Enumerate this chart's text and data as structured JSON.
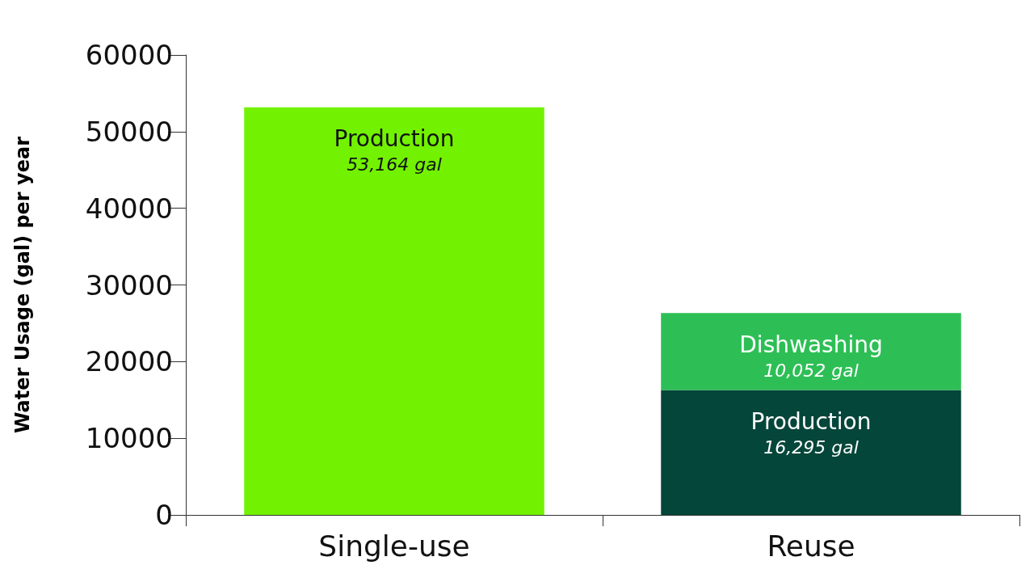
{
  "chart_data": {
    "type": "bar",
    "stacked": true,
    "ylabel": "Water Usage (gal) per year",
    "categories": [
      "Single-use",
      "Reuse"
    ],
    "series": [
      {
        "name": "Production",
        "colors": [
          "#72f200",
          "#05463a"
        ],
        "values": [
          53164,
          16295
        ],
        "value_labels": [
          "53,164 gal",
          "16,295 gal"
        ]
      },
      {
        "name": "Dishwashing",
        "color": "#2dbf55",
        "values": [
          null,
          10052
        ],
        "value_labels": [
          null,
          "10,052 gal"
        ]
      }
    ],
    "ylim": [
      0,
      60000
    ],
    "yticks": [
      0,
      10000,
      20000,
      30000,
      40000,
      50000,
      60000
    ],
    "grid": false,
    "legend": false
  }
}
